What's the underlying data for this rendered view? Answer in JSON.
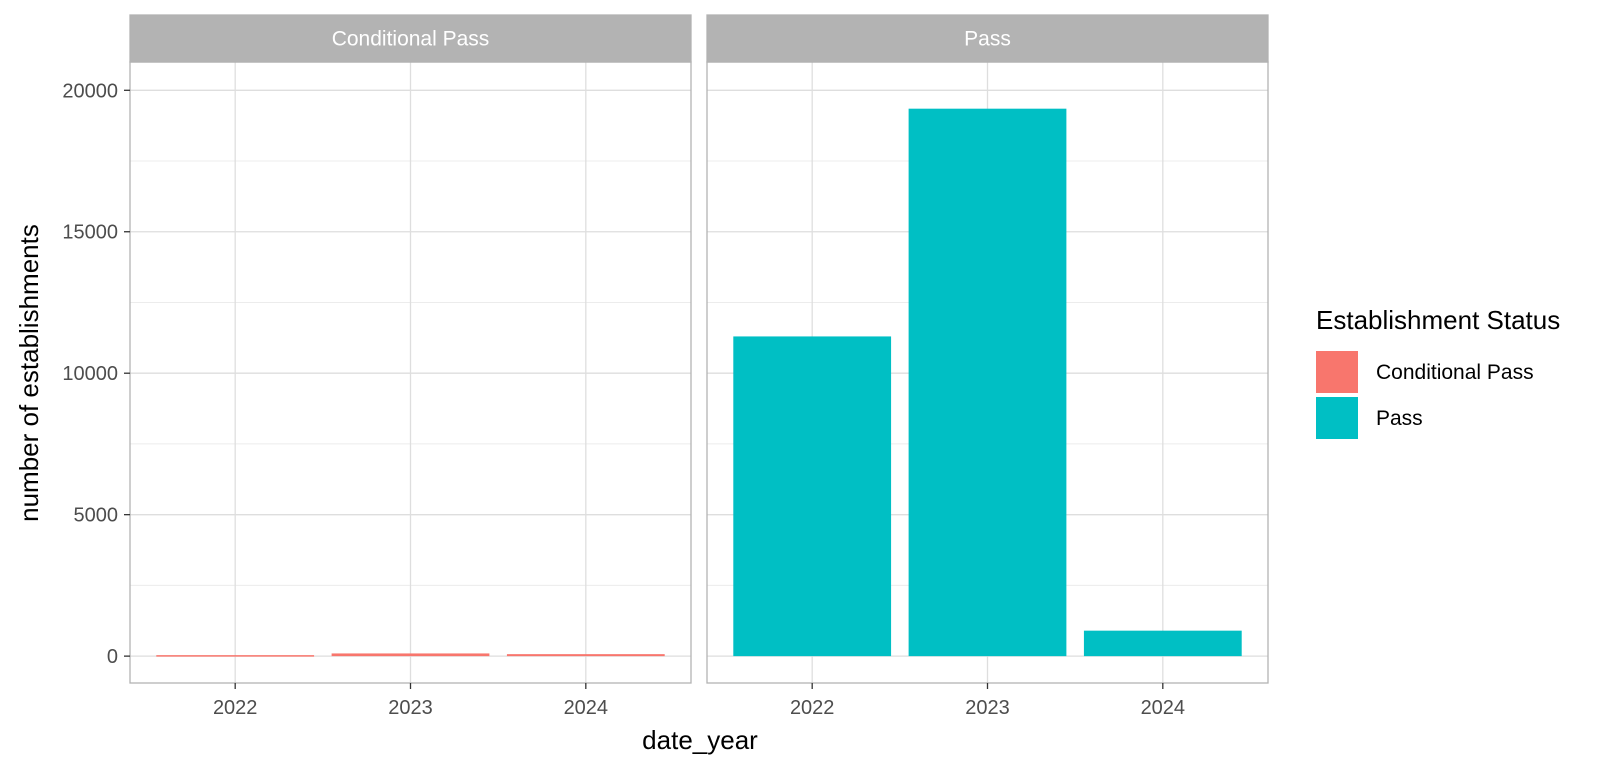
{
  "chart_data": {
    "type": "bar",
    "facets": [
      "Conditional Pass",
      "Pass"
    ],
    "categories": [
      "2022",
      "2023",
      "2024"
    ],
    "series": [
      {
        "name": "Conditional Pass",
        "facet": "Conditional Pass",
        "color": "#F8766D",
        "values": [
          35,
          95,
          70
        ]
      },
      {
        "name": "Pass",
        "facet": "Pass",
        "color": "#00BFC4",
        "values": [
          11300,
          19350,
          900
        ]
      }
    ],
    "xlabel": "date_year",
    "ylabel": "number of establishments",
    "ylim": [
      -950,
      21000
    ],
    "yticks": [
      0,
      5000,
      10000,
      15000,
      20000
    ],
    "grid": true,
    "legend": {
      "title": "Establishment Status",
      "position": "right",
      "items": [
        {
          "label": "Conditional Pass",
          "color": "#F8766D"
        },
        {
          "label": "Pass",
          "color": "#00BFC4"
        }
      ]
    }
  }
}
